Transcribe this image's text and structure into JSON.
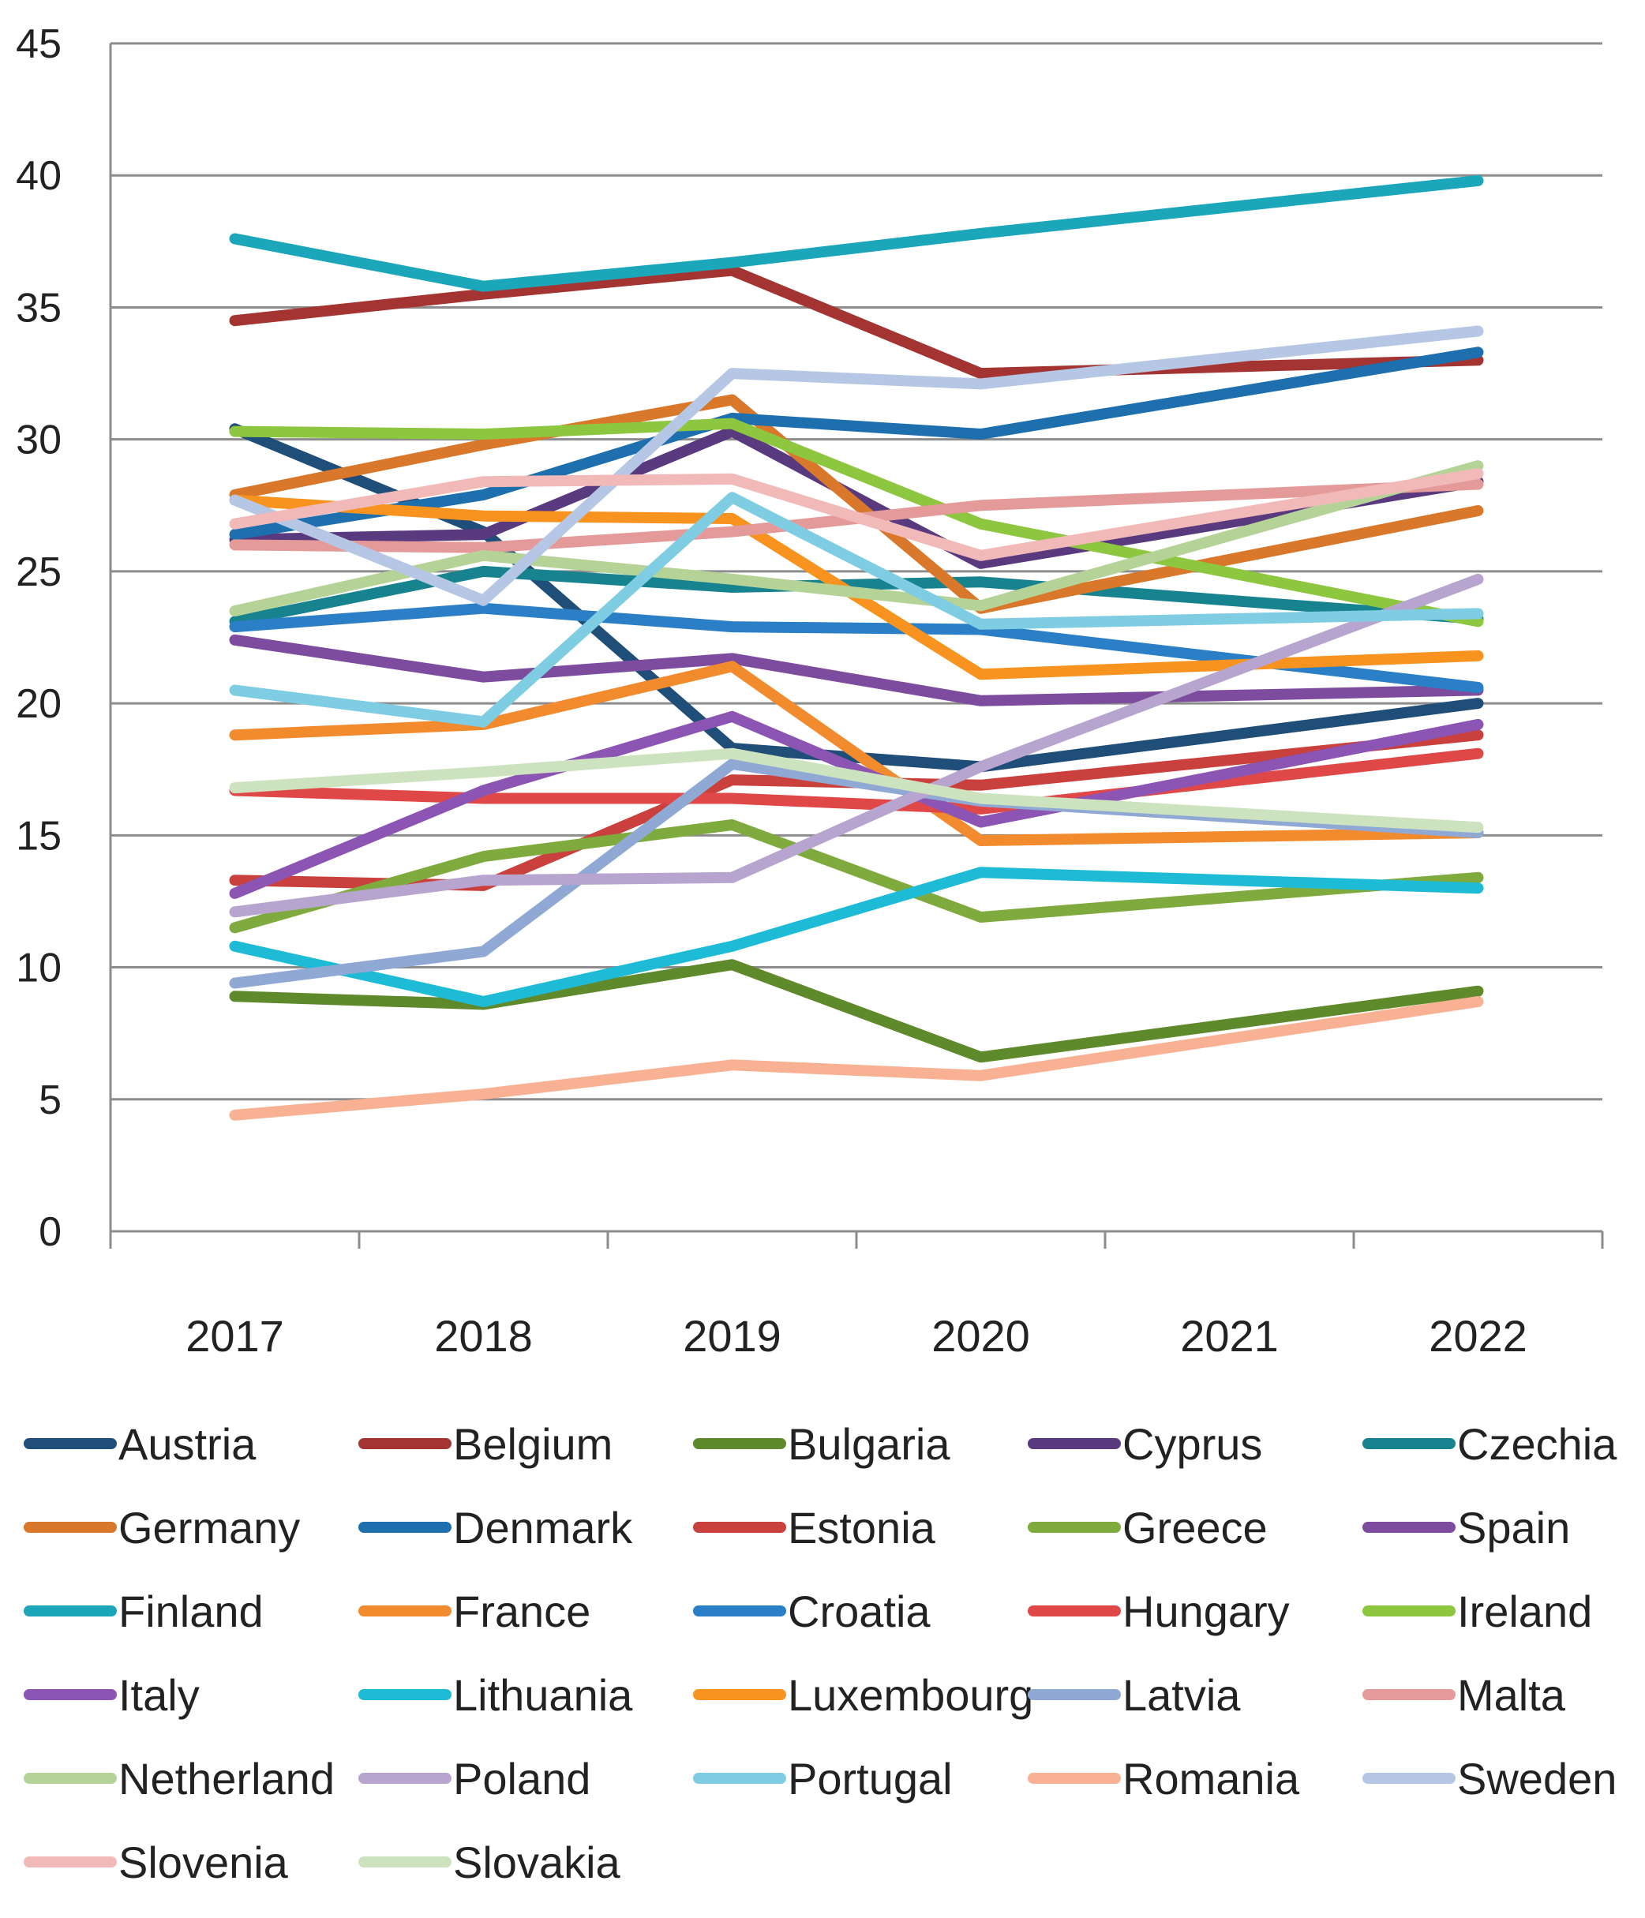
{
  "chart_data": {
    "type": "line",
    "title": "",
    "xlabel": "",
    "ylabel": "",
    "ylim": [
      0,
      45
    ],
    "yticks": [
      0,
      5,
      10,
      15,
      20,
      25,
      30,
      35,
      40,
      45
    ],
    "categories": [
      "2017",
      "2018",
      "2019",
      "2020",
      "2021",
      "2022"
    ],
    "grid": "horizontal",
    "legend_position": "bottom",
    "series": [
      {
        "name": "Austria",
        "color": "#1f4e79",
        "values": [
          30.4,
          26.5,
          18.3,
          17.6,
          null,
          20.0
        ]
      },
      {
        "name": "Belgium",
        "color": "#a33431",
        "values": [
          34.5,
          35.5,
          36.4,
          32.5,
          null,
          33.0
        ]
      },
      {
        "name": "Bulgaria",
        "color": "#5e8a2c",
        "values": [
          8.9,
          8.6,
          10.1,
          6.6,
          null,
          9.1
        ]
      },
      {
        "name": "Cyprus",
        "color": "#5a3a7e",
        "values": [
          26.2,
          26.4,
          30.3,
          25.3,
          null,
          28.4
        ]
      },
      {
        "name": "Czechia",
        "color": "#17838f",
        "values": [
          23.1,
          25.0,
          24.4,
          24.6,
          null,
          23.2
        ]
      },
      {
        "name": "Germany",
        "color": "#d9772b",
        "values": [
          27.9,
          29.8,
          31.5,
          23.6,
          null,
          27.3
        ]
      },
      {
        "name": "Denmark",
        "color": "#1e6fae",
        "values": [
          26.4,
          27.9,
          30.8,
          30.2,
          null,
          33.3
        ]
      },
      {
        "name": "Estonia",
        "color": "#c9403c",
        "values": [
          13.3,
          13.1,
          17.1,
          16.9,
          null,
          18.8
        ]
      },
      {
        "name": "Greece",
        "color": "#7fab3e",
        "values": [
          11.5,
          14.2,
          15.4,
          11.9,
          null,
          13.4
        ]
      },
      {
        "name": "Spain",
        "color": "#7d4c9e",
        "values": [
          22.4,
          21.0,
          21.7,
          20.1,
          null,
          20.5
        ]
      },
      {
        "name": "Finland",
        "color": "#1ba6ba",
        "values": [
          37.6,
          35.8,
          36.7,
          37.8,
          null,
          39.8
        ]
      },
      {
        "name": "France",
        "color": "#f28a2e",
        "values": [
          18.8,
          19.2,
          21.4,
          14.8,
          null,
          15.1
        ]
      },
      {
        "name": "Croatia",
        "color": "#2b7fc6",
        "values": [
          22.9,
          23.6,
          22.9,
          22.8,
          null,
          20.6
        ]
      },
      {
        "name": "Hungary",
        "color": "#e04848",
        "values": [
          16.7,
          16.4,
          16.4,
          16.0,
          null,
          18.1
        ]
      },
      {
        "name": "Ireland",
        "color": "#8dc63f",
        "values": [
          30.3,
          30.2,
          30.6,
          26.8,
          null,
          23.1
        ]
      },
      {
        "name": "Italy",
        "color": "#8d55b3",
        "values": [
          12.8,
          16.7,
          19.5,
          15.5,
          null,
          19.2
        ]
      },
      {
        "name": "Lithuania",
        "color": "#1ebbd7",
        "values": [
          10.8,
          8.7,
          10.8,
          13.6,
          null,
          13.0
        ]
      },
      {
        "name": "Luxembourg",
        "color": "#f7931e",
        "values": [
          27.7,
          27.1,
          27.0,
          21.1,
          null,
          21.8
        ]
      },
      {
        "name": "Latvia",
        "color": "#8fa9d4",
        "values": [
          9.4,
          10.6,
          17.7,
          16.3,
          null,
          15.1
        ]
      },
      {
        "name": "Malta",
        "color": "#e59a9a",
        "values": [
          26.0,
          25.9,
          26.5,
          27.5,
          null,
          28.3
        ]
      },
      {
        "name": "Netherland",
        "color": "#b5d397",
        "values": [
          23.5,
          25.6,
          24.7,
          23.7,
          null,
          29.0
        ]
      },
      {
        "name": "Poland",
        "color": "#b8a5cf",
        "values": [
          12.1,
          13.3,
          13.4,
          17.6,
          null,
          24.7
        ]
      },
      {
        "name": "Portugal",
        "color": "#7fcde2",
        "values": [
          20.5,
          19.3,
          27.8,
          23.0,
          null,
          23.4
        ]
      },
      {
        "name": "Romania",
        "color": "#f8b293",
        "values": [
          4.4,
          5.2,
          6.3,
          5.9,
          null,
          8.7
        ]
      },
      {
        "name": "Sweden",
        "color": "#b5c7e4",
        "values": [
          27.7,
          23.9,
          32.5,
          32.1,
          null,
          34.1
        ]
      },
      {
        "name": "Slovenia",
        "color": "#f2b9b9",
        "values": [
          26.8,
          28.4,
          28.5,
          25.6,
          null,
          28.7
        ]
      },
      {
        "name": "Slovakia",
        "color": "#cde2bf",
        "values": [
          16.8,
          17.4,
          18.1,
          16.4,
          null,
          15.3
        ]
      }
    ]
  }
}
